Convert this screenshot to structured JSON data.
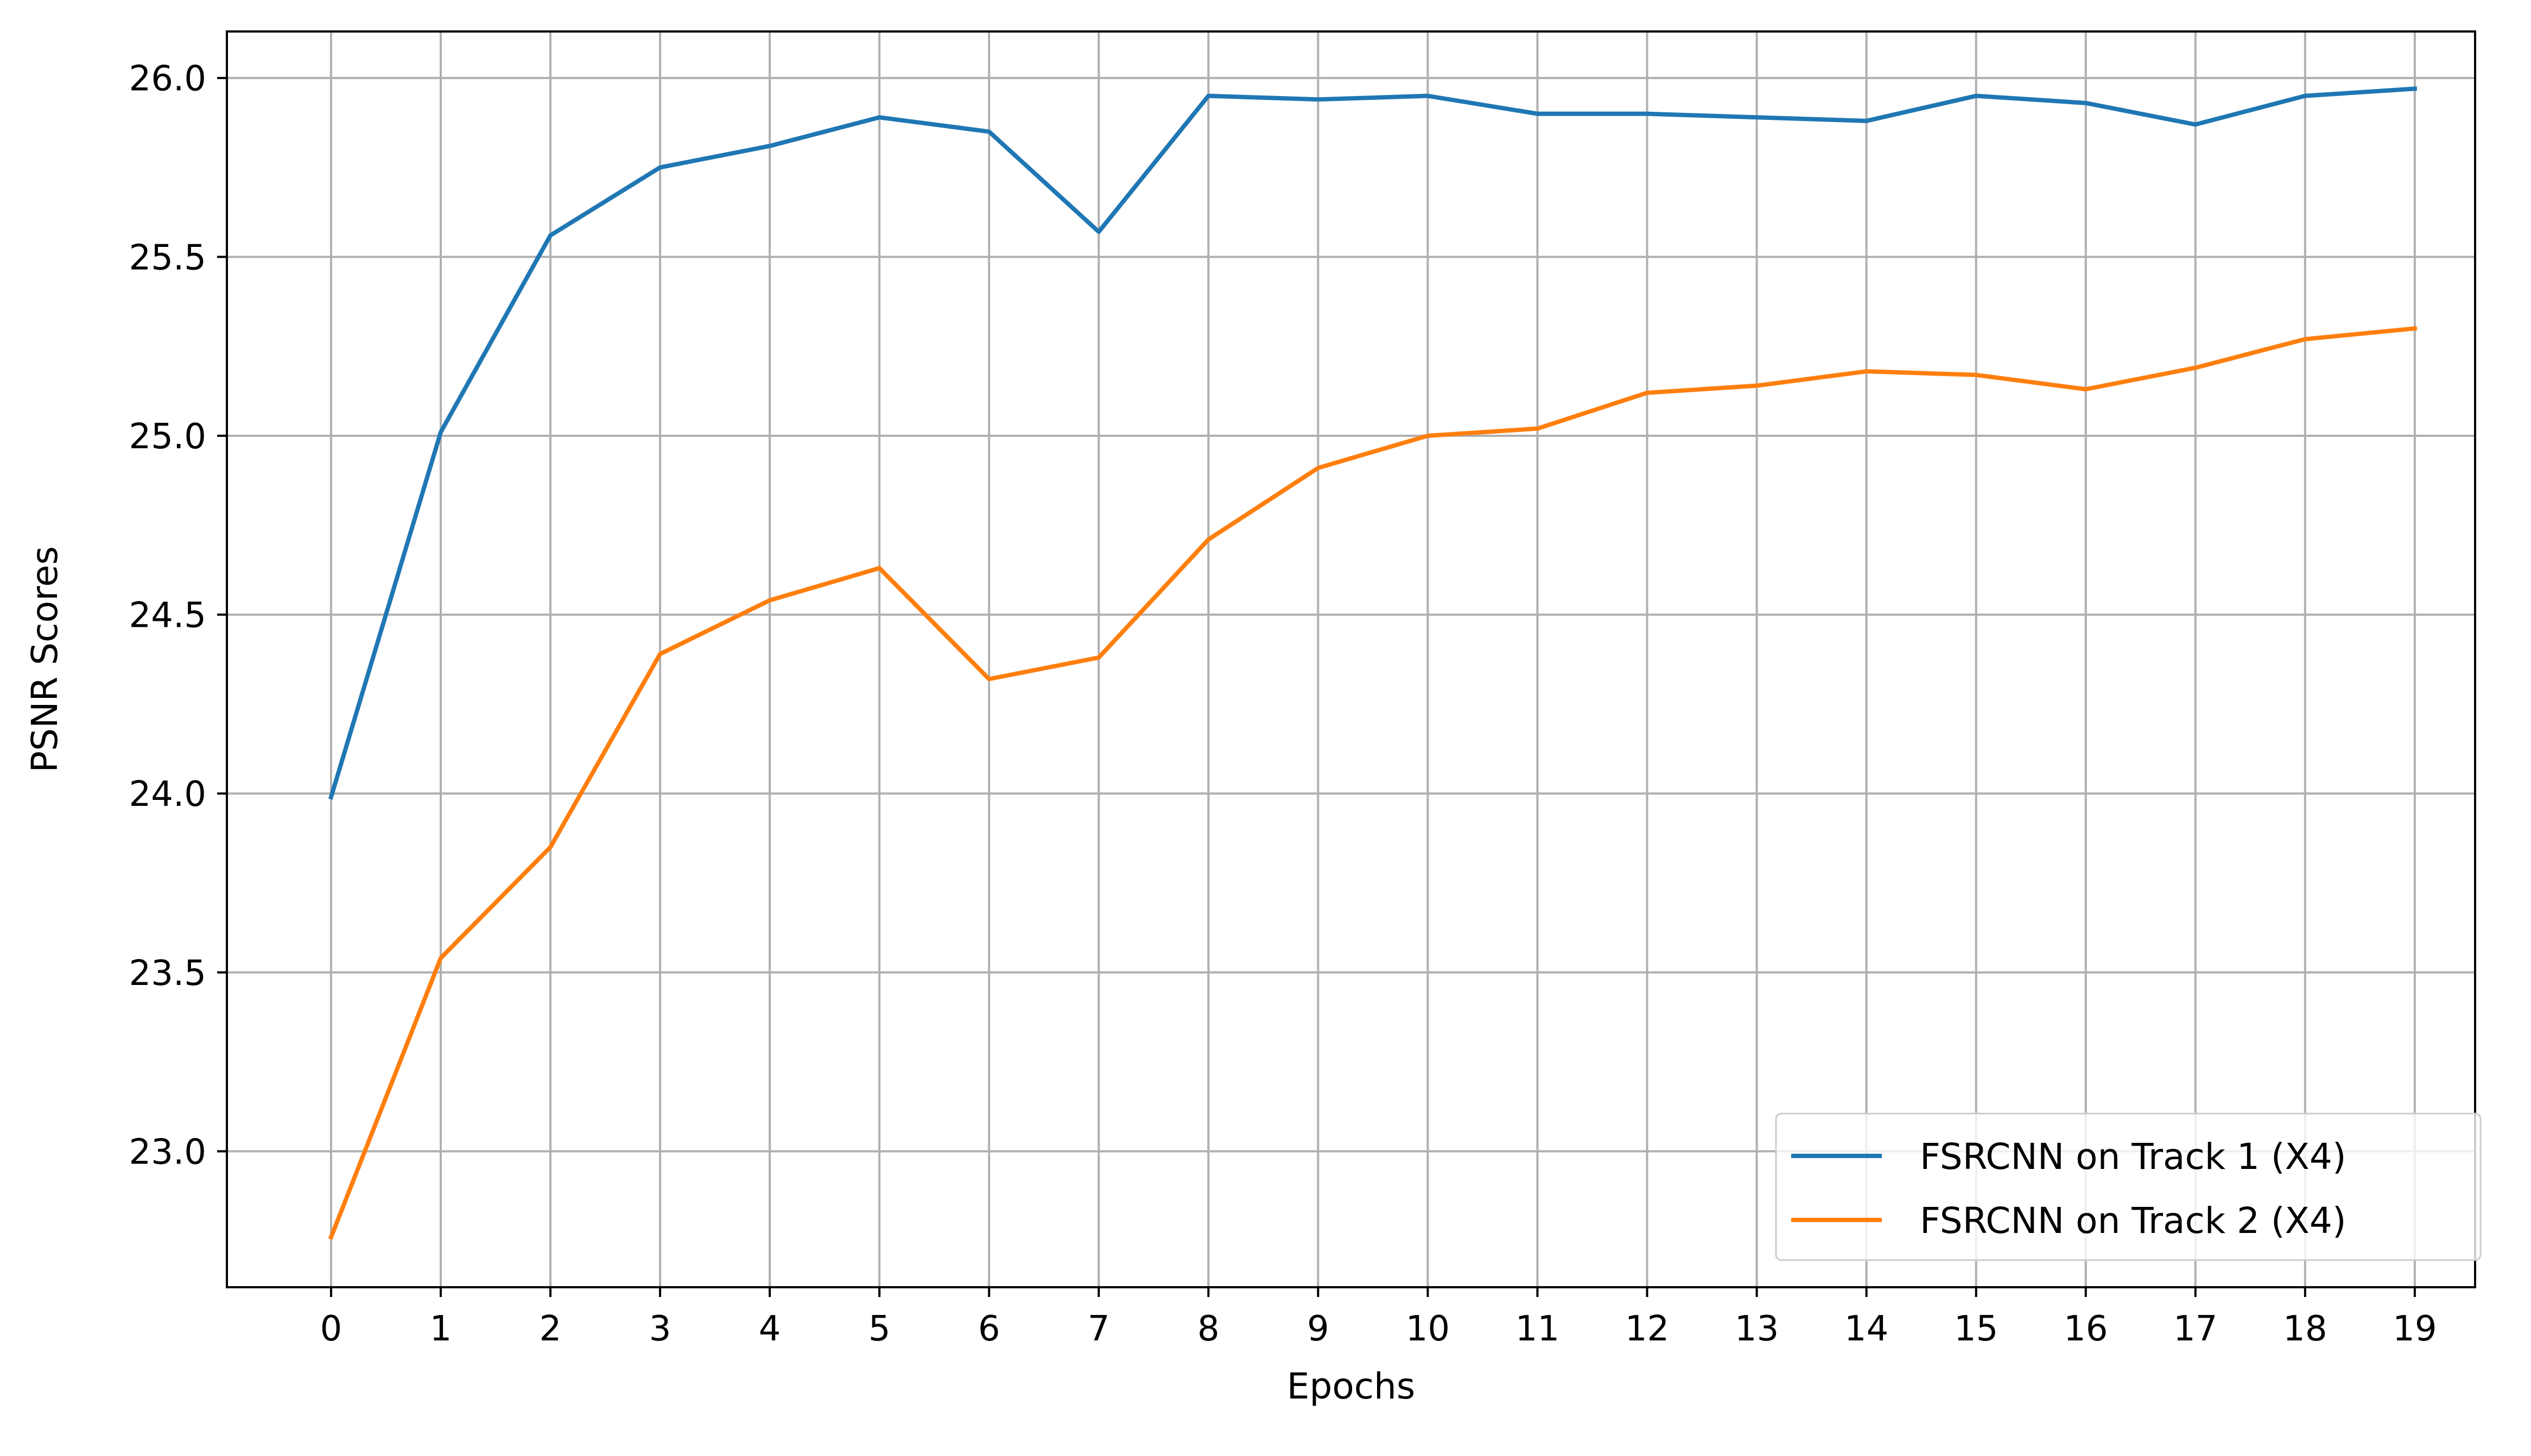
{
  "chart_data": {
    "type": "line",
    "title": "",
    "xlabel": "Epochs",
    "ylabel": "PSNR Scores",
    "x": [
      0,
      1,
      2,
      3,
      4,
      5,
      6,
      7,
      8,
      9,
      10,
      11,
      12,
      13,
      14,
      15,
      16,
      17,
      18,
      19
    ],
    "x_tick_labels": [
      "0",
      "1",
      "2",
      "3",
      "4",
      "5",
      "6",
      "7",
      "8",
      "9",
      "10",
      "11",
      "12",
      "13",
      "14",
      "15",
      "16",
      "17",
      "18",
      "19"
    ],
    "y_ticks": [
      23.0,
      23.5,
      24.0,
      24.5,
      25.0,
      25.5,
      26.0
    ],
    "y_tick_labels": [
      "23.0",
      "23.5",
      "24.0",
      "24.5",
      "25.0",
      "25.5",
      "26.0"
    ],
    "xlim": [
      -0.95,
      19.55
    ],
    "ylim": [
      22.62,
      26.13
    ],
    "grid": true,
    "legend_position": "lower-right",
    "series": [
      {
        "name": "FSRCNN on Track 1 (X4)",
        "color": "#1f77b4",
        "values": [
          23.99,
          25.01,
          25.56,
          25.75,
          25.81,
          25.89,
          25.85,
          25.57,
          25.95,
          25.94,
          25.95,
          25.9,
          25.9,
          25.89,
          25.88,
          25.95,
          25.93,
          25.87,
          25.95,
          25.97
        ]
      },
      {
        "name": "FSRCNN on Track 2 (X4)",
        "color": "#ff7f0e",
        "values": [
          22.76,
          23.54,
          23.85,
          24.39,
          24.54,
          24.63,
          24.32,
          24.38,
          24.71,
          24.91,
          25.0,
          25.02,
          25.12,
          25.14,
          25.18,
          25.17,
          25.13,
          25.19,
          25.27,
          25.3
        ]
      }
    ]
  }
}
